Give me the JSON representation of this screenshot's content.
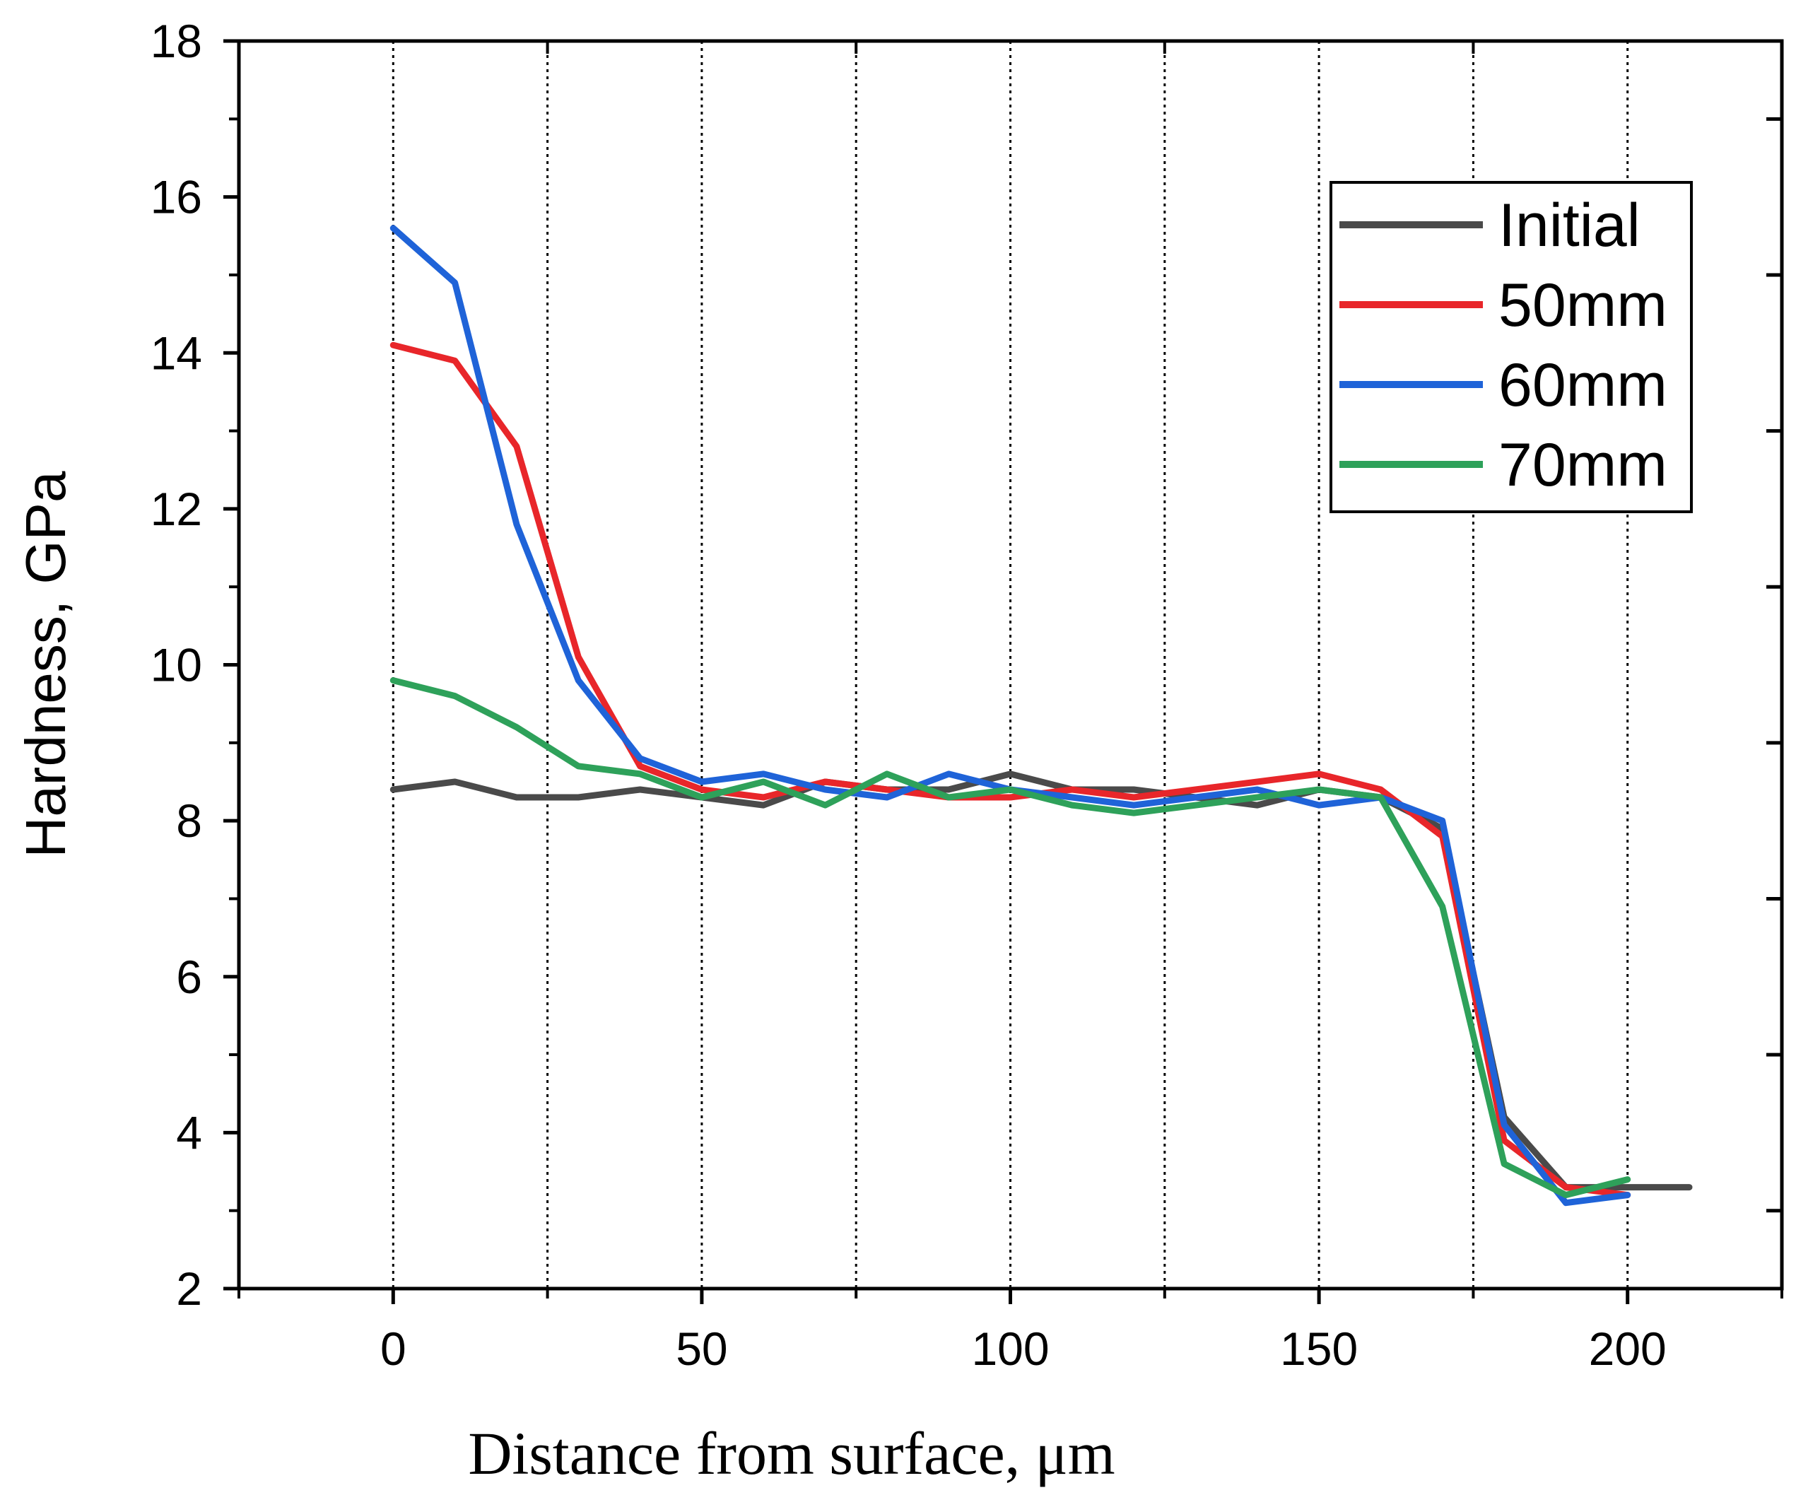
{
  "chart_data": {
    "type": "line",
    "title": "",
    "xlabel": "Distance from surface, μm",
    "ylabel": "Hardness, GPa",
    "xlim": [
      -25,
      225
    ],
    "ylim": [
      2,
      18
    ],
    "xticks": [
      0,
      50,
      100,
      150,
      200
    ],
    "yticks": [
      2,
      4,
      6,
      8,
      10,
      12,
      14,
      16,
      18
    ],
    "vlines": [
      0,
      25,
      50,
      75,
      100,
      125,
      150,
      175,
      200
    ],
    "legend_position": "top-right",
    "series": [
      {
        "name": "Initial",
        "color": "#4a4a4a",
        "x": [
          0,
          10,
          20,
          30,
          40,
          50,
          60,
          70,
          80,
          90,
          100,
          110,
          120,
          130,
          140,
          150,
          160,
          170,
          180,
          190,
          200,
          210
        ],
        "y": [
          8.4,
          8.5,
          8.3,
          8.3,
          8.4,
          8.3,
          8.2,
          8.5,
          8.4,
          8.4,
          8.6,
          8.4,
          8.4,
          8.3,
          8.2,
          8.4,
          8.3,
          7.9,
          4.2,
          3.3,
          3.3,
          3.3
        ]
      },
      {
        "name": "50mm",
        "color": "#e8262a",
        "x": [
          0,
          10,
          20,
          30,
          40,
          50,
          60,
          70,
          80,
          90,
          100,
          110,
          120,
          130,
          140,
          150,
          160,
          170,
          180,
          190,
          200
        ],
        "y": [
          14.1,
          13.9,
          12.8,
          10.1,
          8.7,
          8.4,
          8.3,
          8.5,
          8.4,
          8.3,
          8.3,
          8.4,
          8.3,
          8.4,
          8.5,
          8.6,
          8.4,
          7.8,
          3.9,
          3.3,
          3.2
        ]
      },
      {
        "name": "60mm",
        "color": "#1f63d8",
        "x": [
          0,
          10,
          20,
          30,
          40,
          50,
          60,
          70,
          80,
          90,
          100,
          110,
          120,
          130,
          140,
          150,
          160,
          170,
          180,
          190,
          200
        ],
        "y": [
          15.6,
          14.9,
          11.8,
          9.8,
          8.8,
          8.5,
          8.6,
          8.4,
          8.3,
          8.6,
          8.4,
          8.3,
          8.2,
          8.3,
          8.4,
          8.2,
          8.3,
          8.0,
          4.1,
          3.1,
          3.2
        ]
      },
      {
        "name": "70mm",
        "color": "#2ea15a",
        "x": [
          0,
          10,
          20,
          30,
          40,
          50,
          60,
          70,
          80,
          90,
          100,
          110,
          120,
          130,
          140,
          150,
          160,
          170,
          180,
          190,
          200
        ],
        "y": [
          9.8,
          9.6,
          9.2,
          8.7,
          8.6,
          8.3,
          8.5,
          8.2,
          8.6,
          8.3,
          8.4,
          8.2,
          8.1,
          8.2,
          8.3,
          8.4,
          8.3,
          6.9,
          3.6,
          3.2,
          3.4
        ]
      }
    ]
  }
}
